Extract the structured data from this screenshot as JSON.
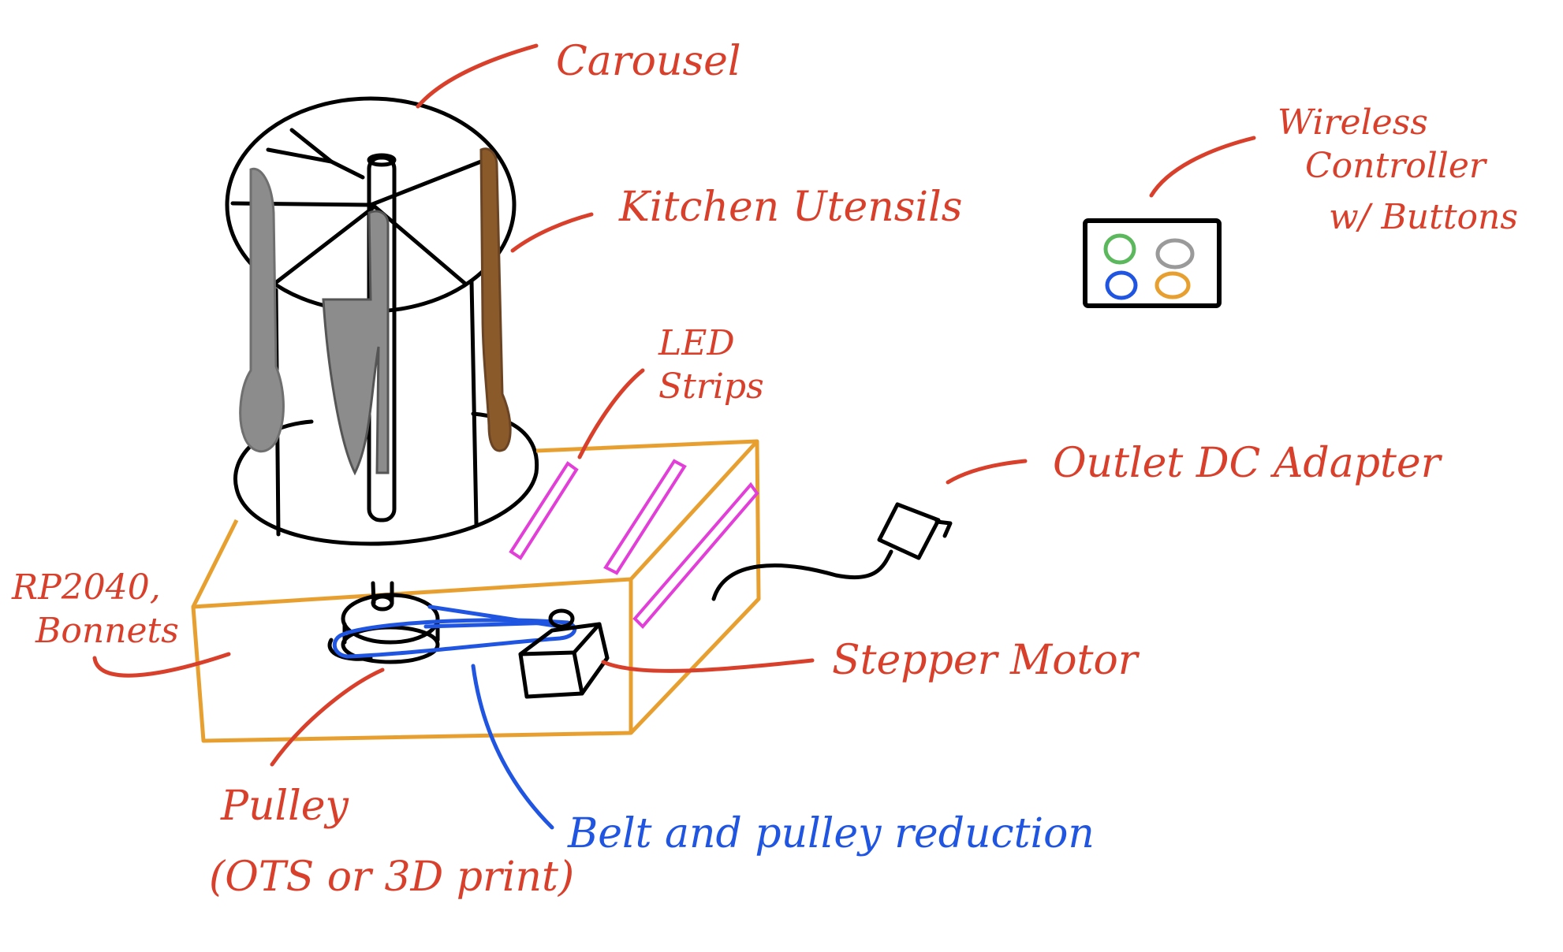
{
  "labels": {
    "carousel": "Carousel",
    "kitchen_utensils": "Kitchen Utensils",
    "wireless_controller_line1": "Wireless",
    "wireless_controller_line2": "Controller",
    "wireless_controller_line3": "w/ Buttons",
    "led_strips_line1": "LED",
    "led_strips_line2": "Strips",
    "outlet_dc_adapter": "Outlet DC Adapter",
    "rp2040_line1": "RP2040,",
    "rp2040_line2": "Bonnets",
    "stepper_motor": "Stepper Motor",
    "pulley_line1": "Pulley",
    "pulley_line2": "(OTS or 3D print)",
    "belt_and_pulley": "Belt and pulley reduction"
  },
  "colors": {
    "annotation_red": "#d8402c",
    "annotation_blue": "#1f55e0",
    "box_orange": "#e7a030",
    "led_pink": "#e23ed8",
    "utensil_gray": "#8c8c8c",
    "utensil_brown": "#8b5a2b",
    "button_green": "#5cb85c",
    "button_gray": "#9a9a9a",
    "button_blue": "#1f55e0",
    "button_orange": "#e7a030"
  }
}
